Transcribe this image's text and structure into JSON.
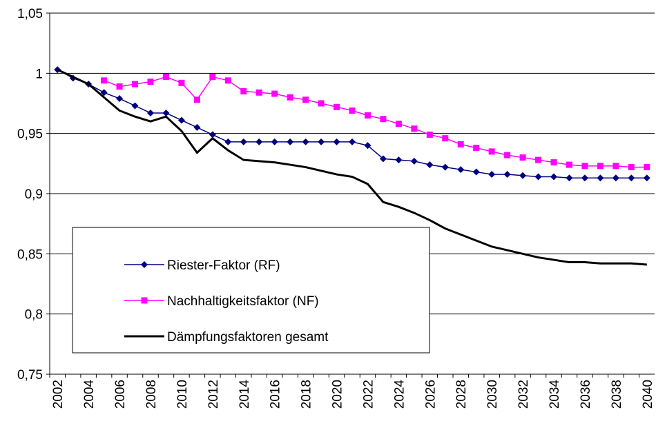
{
  "chart_data": {
    "type": "line",
    "categories": [
      "2002",
      null,
      "2004",
      null,
      "2006",
      null,
      "2008",
      null,
      "2010",
      null,
      "2012",
      null,
      "2014",
      null,
      "2016",
      null,
      "2018",
      null,
      "2020",
      null,
      "2022",
      null,
      "2024",
      null,
      "2026",
      null,
      "2028",
      null,
      "2030",
      null,
      "2032",
      null,
      "2034",
      null,
      "2036",
      null,
      "2038",
      null,
      "2040"
    ],
    "series": [
      {
        "name": "Riester-Faktor (RF)",
        "color": "#000080",
        "marker": "diamond",
        "values": [
          1.003,
          0.996,
          0.991,
          0.984,
          0.979,
          0.973,
          0.967,
          0.967,
          0.961,
          0.955,
          0.949,
          0.943,
          0.943,
          0.943,
          0.943,
          0.943,
          0.943,
          0.943,
          0.943,
          0.943,
          0.94,
          0.929,
          0.928,
          0.927,
          0.924,
          0.922,
          0.92,
          0.918,
          0.916,
          0.916,
          0.915,
          0.914,
          0.914,
          0.913,
          0.913,
          0.913,
          0.913,
          0.913,
          0.913
        ]
      },
      {
        "name": "Nachhaltigkeitsfaktor (NF)",
        "color": "#ff00ff",
        "marker": "square",
        "values": [
          null,
          null,
          null,
          0.994,
          0.989,
          0.991,
          0.993,
          0.997,
          0.992,
          0.978,
          0.997,
          0.994,
          0.985,
          0.984,
          0.983,
          0.98,
          0.978,
          0.975,
          0.972,
          0.969,
          0.965,
          0.962,
          0.958,
          0.954,
          0.949,
          0.946,
          0.941,
          0.938,
          0.935,
          0.932,
          0.93,
          0.928,
          0.926,
          0.924,
          0.923,
          0.923,
          0.923,
          0.922,
          0.922
        ]
      },
      {
        "name": "Dämpfungsfaktoren gesamt",
        "color": "#000000",
        "marker": "none",
        "values": [
          1.003,
          0.997,
          0.991,
          0.98,
          0.969,
          0.964,
          0.96,
          0.964,
          0.952,
          0.934,
          0.946,
          0.936,
          0.928,
          0.927,
          0.926,
          0.924,
          0.922,
          0.919,
          0.916,
          0.914,
          0.908,
          0.893,
          0.889,
          0.884,
          0.878,
          0.871,
          0.866,
          0.861,
          0.856,
          0.853,
          0.85,
          0.847,
          0.845,
          0.843,
          0.843,
          0.842,
          0.842,
          0.842,
          0.841
        ]
      }
    ],
    "ylim": [
      0.75,
      1.05
    ],
    "yticks": [
      {
        "value": 0.75,
        "label": "0,75"
      },
      {
        "value": 0.8,
        "label": "0,8"
      },
      {
        "value": 0.85,
        "label": "0,85"
      },
      {
        "value": 0.9,
        "label": "0,9"
      },
      {
        "value": 0.95,
        "label": "0,95"
      },
      1,
      {
        "value": 1.05,
        "label": "1,05"
      }
    ],
    "grid": true
  }
}
